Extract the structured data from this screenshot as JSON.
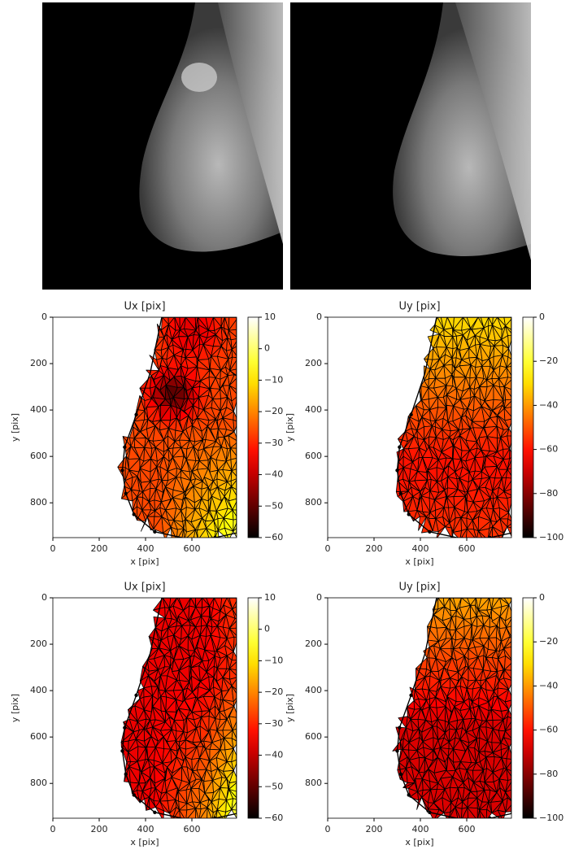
{
  "chart_data": [
    {
      "type": "heatmap",
      "title": "Ux [pix]",
      "x_label": "x [pix]",
      "y_label": "y [pix]",
      "xlim": [
        0,
        793
      ],
      "ylim": [
        950,
        0
      ],
      "xticks": [
        0,
        200,
        400,
        600
      ],
      "yticks": [
        0,
        200,
        400,
        600,
        800
      ],
      "colormap": "hot",
      "clim": [
        -60,
        10
      ],
      "cticks": [
        10,
        0,
        {
          "value": -10,
          "label": "−10"
        },
        {
          "value": -20,
          "label": "−20"
        },
        {
          "value": -30,
          "label": "−30"
        },
        {
          "value": -40,
          "label": "−40"
        },
        {
          "value": -50,
          "label": "−50"
        },
        {
          "value": -60,
          "label": "−60"
        }
      ]
    },
    {
      "type": "heatmap",
      "title": "Uy [pix]",
      "x_label": "x [pix]",
      "y_label": "y [pix]",
      "xlim": [
        0,
        793
      ],
      "ylim": [
        950,
        0
      ],
      "xticks": [
        0,
        200,
        400,
        600
      ],
      "yticks": [
        0,
        200,
        400,
        600,
        800
      ],
      "colormap": "hot",
      "clim": [
        -100,
        0
      ],
      "cticks": [
        0,
        {
          "value": -20,
          "label": "−20"
        },
        {
          "value": -40,
          "label": "−40"
        },
        {
          "value": -60,
          "label": "−60"
        },
        {
          "value": -80,
          "label": "−80"
        },
        {
          "value": -100,
          "label": "−100"
        }
      ]
    },
    {
      "type": "heatmap",
      "title": "Ux [pix]",
      "x_label": "x [pix]",
      "y_label": "y [pix]",
      "xlim": [
        0,
        793
      ],
      "ylim": [
        950,
        0
      ],
      "xticks": [
        0,
        200,
        400,
        600
      ],
      "yticks": [
        0,
        200,
        400,
        600,
        800
      ],
      "colormap": "hot",
      "clim": [
        -60,
        10
      ],
      "cticks": [
        10,
        0,
        {
          "value": -10,
          "label": "−10"
        },
        {
          "value": -20,
          "label": "−20"
        },
        {
          "value": -30,
          "label": "−30"
        },
        {
          "value": -40,
          "label": "−40"
        },
        {
          "value": -50,
          "label": "−50"
        },
        {
          "value": -60,
          "label": "−60"
        }
      ]
    },
    {
      "type": "heatmap",
      "title": "Uy [pix]",
      "x_label": "x [pix]",
      "y_label": "y [pix]",
      "xlim": [
        0,
        793
      ],
      "ylim": [
        950,
        0
      ],
      "xticks": [
        0,
        200,
        400,
        600
      ],
      "yticks": [
        0,
        200,
        400,
        600,
        800
      ],
      "colormap": "hot",
      "clim": [
        -100,
        0
      ],
      "cticks": [
        0,
        {
          "value": -20,
          "label": "−20"
        },
        {
          "value": -40,
          "label": "−40"
        },
        {
          "value": -60,
          "label": "−60"
        },
        {
          "value": -80,
          "label": "−80"
        },
        {
          "value": -100,
          "label": "−100"
        }
      ]
    }
  ]
}
